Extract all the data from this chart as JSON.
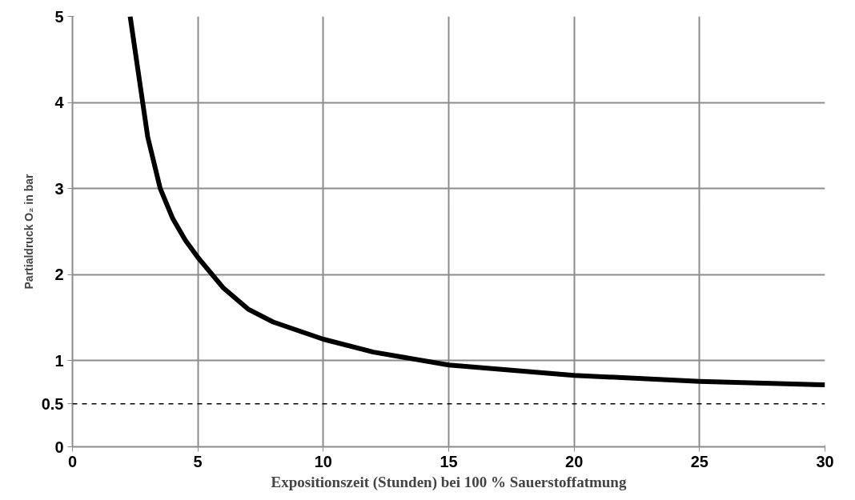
{
  "chart_data": {
    "type": "line",
    "xlabel": "Expositionszeit (Stunden) bei 100 % Sauerstoffatmung",
    "ylabel": "Partialdruck O₂ in bar",
    "x": [
      2.3,
      2.6,
      3,
      3.5,
      4,
      4.5,
      5,
      6,
      7,
      8,
      10,
      12,
      15,
      20,
      25,
      30
    ],
    "series": [
      {
        "color": "#000000",
        "values": [
          5,
          4.4,
          3.6,
          3,
          2.65,
          2.4,
          2.2,
          1.85,
          1.6,
          1.45,
          1.25,
          1.1,
          0.95,
          0.83,
          0.76,
          0.72
        ]
      }
    ],
    "xlim": [
      0,
      30
    ],
    "ylim": [
      0,
      5
    ],
    "xticks": [
      0,
      5,
      10,
      15,
      20,
      25,
      30
    ],
    "yticks": [
      0,
      0.5,
      1,
      2,
      3,
      4,
      5
    ],
    "ref_lines": [
      {
        "axis": "y",
        "value": 0.5,
        "color": "#000000",
        "line_style": "dashed"
      }
    ],
    "grid": true,
    "marker": "none",
    "line_style": "solid"
  }
}
